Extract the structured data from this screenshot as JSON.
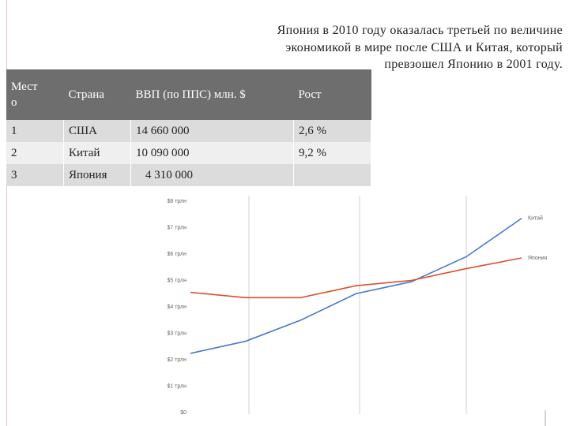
{
  "heading": "Япония в 2010 году оказалась третьей по величине экономикой в мире после США и Китая, который превзошел Японию в 2001 году.",
  "table": {
    "header": [
      "Место",
      "Страна",
      "ВВП (по ППС) млн. $",
      "Рост"
    ],
    "rows": [
      [
        "1",
        "США",
        "14 660 000",
        "2,6 %"
      ],
      [
        "2",
        "Китай",
        "10 090 000",
        "9,2 %"
      ],
      [
        "3",
        "Япония",
        "4 310 000"
      ]
    ]
  },
  "chart_data": {
    "type": "line",
    "series": [
      {
        "name": "Китай",
        "color": "#4a78c8",
        "values": [
          2.24,
          2.7,
          3.5,
          4.5,
          4.95,
          5.9,
          7.35
        ]
      },
      {
        "name": "Япония",
        "color": "#d9502f",
        "values": [
          4.55,
          4.35,
          4.35,
          4.8,
          5.0,
          5.45,
          5.85
        ]
      }
    ],
    "ylim": [
      0,
      8
    ],
    "yticks": [
      {
        "value": 0,
        "label": "$0"
      },
      {
        "value": 1,
        "label": "$1 трлн"
      },
      {
        "value": 2,
        "label": "$2 трлн"
      },
      {
        "value": 3,
        "label": "$3 трлн"
      },
      {
        "value": 4,
        "label": "$4 трлн"
      },
      {
        "value": 5,
        "label": "$5 трлн"
      },
      {
        "value": 6,
        "label": "$6 трлн"
      },
      {
        "value": 7,
        "label": "$7 трлн"
      },
      {
        "value": 8,
        "label": "$8 трлн"
      }
    ]
  }
}
